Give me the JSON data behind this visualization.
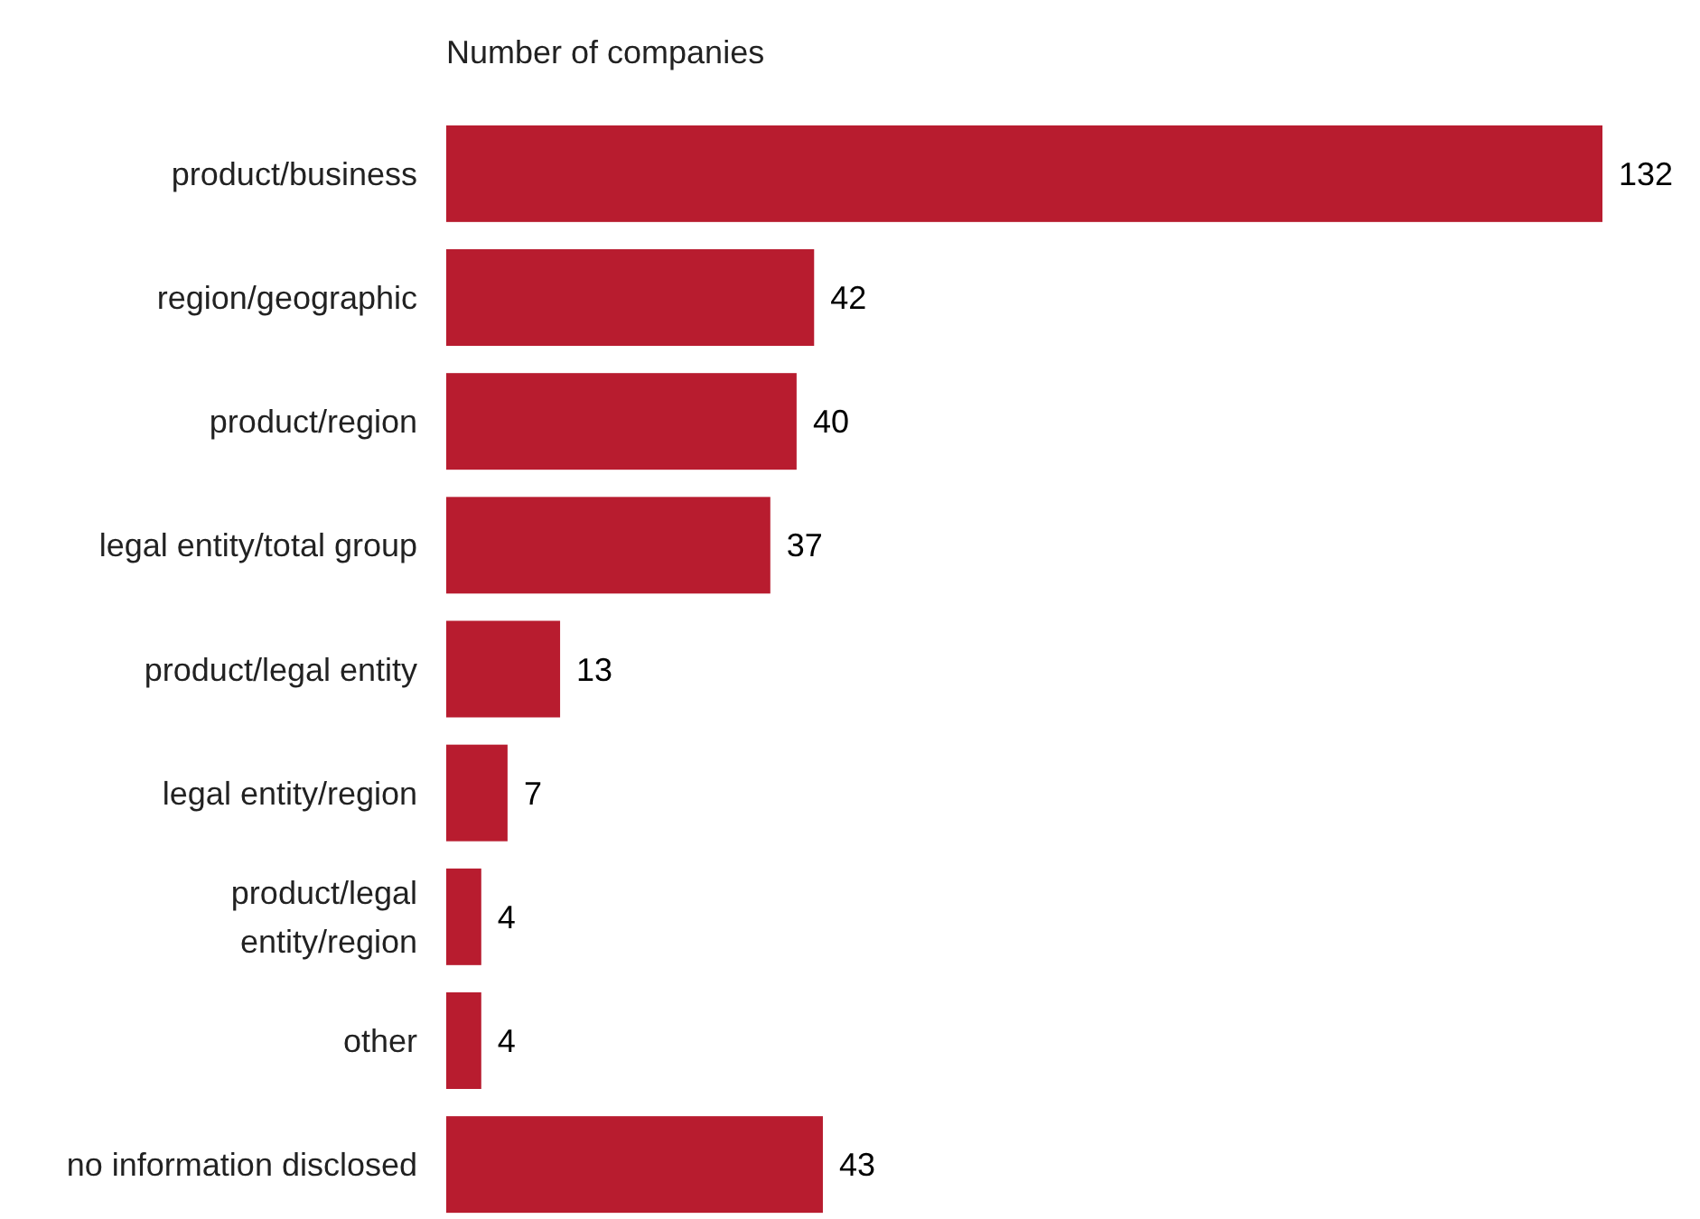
{
  "chart_data": {
    "type": "bar",
    "orientation": "horizontal",
    "title": "Number of companies",
    "categories": [
      "product/business",
      "region/geographic",
      "product/region",
      "legal entity/total group",
      "product/legal entity",
      "legal entity/region",
      "product/legal entity/region",
      "other",
      "no information disclosed"
    ],
    "values": [
      132,
      42,
      40,
      37,
      13,
      7,
      4,
      4,
      43
    ],
    "color": "#b81c2f",
    "data_labels": true
  }
}
